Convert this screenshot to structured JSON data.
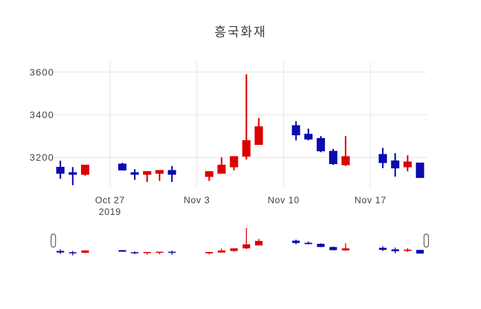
{
  "chart_data": {
    "type": "candlestick",
    "title": "흥국화재",
    "xlabel": "",
    "ylabel": "",
    "y_ticks": [
      3200,
      3400,
      3600
    ],
    "ylim": [
      3063,
      3648
    ],
    "x_ticks": [
      {
        "date": "2019-10-27",
        "label": "Oct 27",
        "year": "2019"
      },
      {
        "date": "2019-11-03",
        "label": "Nov 3"
      },
      {
        "date": "2019-11-10",
        "label": "Nov 10"
      },
      {
        "date": "2019-11-17",
        "label": "Nov 17"
      }
    ],
    "colors": {
      "increasing": "#dc0000",
      "decreasing": "#0b0bb0",
      "grid": "#e8e8e8",
      "tick_text": "#444444",
      "title_text": "#3d3d3d",
      "background": "#ffffff",
      "slider_handle_fill": "#ffffff",
      "slider_handle_border": "#565656"
    },
    "rangeslider": {
      "visible": true,
      "selected_range": [
        "2019-10-23",
        "2019-11-21"
      ]
    },
    "candles": [
      {
        "date": "2019-10-23",
        "open": 3155,
        "high": 3185,
        "low": 3100,
        "close": 3125
      },
      {
        "date": "2019-10-24",
        "open": 3130,
        "high": 3155,
        "low": 3070,
        "close": 3120
      },
      {
        "date": "2019-10-25",
        "open": 3120,
        "high": 3165,
        "low": 3115,
        "close": 3165
      },
      {
        "date": "2019-10-28",
        "open": 3170,
        "high": 3175,
        "low": 3140,
        "close": 3140
      },
      {
        "date": "2019-10-29",
        "open": 3130,
        "high": 3145,
        "low": 3095,
        "close": 3120
      },
      {
        "date": "2019-10-30",
        "open": 3120,
        "high": 3135,
        "low": 3085,
        "close": 3135
      },
      {
        "date": "2019-10-31",
        "open": 3125,
        "high": 3140,
        "low": 3090,
        "close": 3140
      },
      {
        "date": "2019-11-01",
        "open": 3140,
        "high": 3160,
        "low": 3085,
        "close": 3120
      },
      {
        "date": "2019-11-04",
        "open": 3110,
        "high": 3135,
        "low": 3090,
        "close": 3135
      },
      {
        "date": "2019-11-05",
        "open": 3125,
        "high": 3200,
        "low": 3125,
        "close": 3165
      },
      {
        "date": "2019-11-06",
        "open": 3155,
        "high": 3205,
        "low": 3140,
        "close": 3205
      },
      {
        "date": "2019-11-07",
        "open": 3205,
        "high": 3590,
        "low": 3190,
        "close": 3280
      },
      {
        "date": "2019-11-08",
        "open": 3260,
        "high": 3385,
        "low": 3260,
        "close": 3345
      },
      {
        "date": "2019-11-11",
        "open": 3350,
        "high": 3370,
        "low": 3280,
        "close": 3305
      },
      {
        "date": "2019-11-12",
        "open": 3310,
        "high": 3335,
        "low": 3280,
        "close": 3285
      },
      {
        "date": "2019-11-13",
        "open": 3290,
        "high": 3300,
        "low": 3225,
        "close": 3230
      },
      {
        "date": "2019-11-14",
        "open": 3230,
        "high": 3240,
        "low": 3165,
        "close": 3170
      },
      {
        "date": "2019-11-15",
        "open": 3165,
        "high": 3300,
        "low": 3160,
        "close": 3205
      },
      {
        "date": "2019-11-18",
        "open": 3215,
        "high": 3245,
        "low": 3150,
        "close": 3175
      },
      {
        "date": "2019-11-19",
        "open": 3185,
        "high": 3220,
        "low": 3110,
        "close": 3150
      },
      {
        "date": "2019-11-20",
        "open": 3155,
        "high": 3210,
        "low": 3135,
        "close": 3180
      },
      {
        "date": "2019-11-21",
        "open": 3175,
        "high": 3175,
        "low": 3105,
        "close": 3105
      }
    ]
  }
}
